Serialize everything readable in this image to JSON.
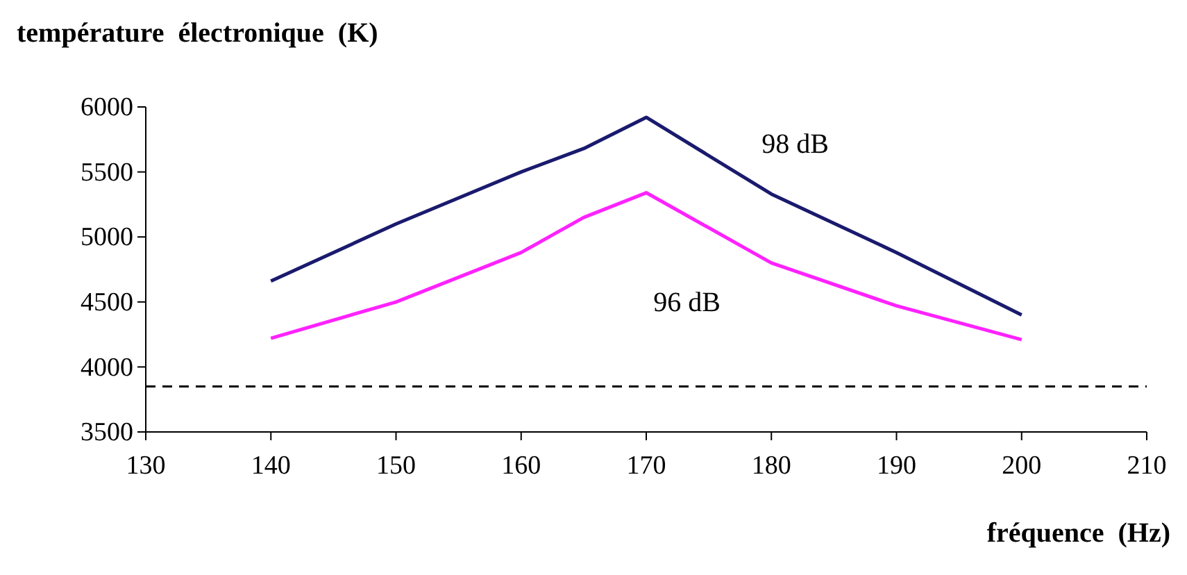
{
  "chart_data": {
    "type": "line",
    "xlabel": "fréquence  (Hz)",
    "ylabel": "température  électronique  (K)",
    "x": [
      140,
      150,
      160,
      165,
      170,
      180,
      190,
      200
    ],
    "series": [
      {
        "name": "98 dB",
        "color": "#1a1a6e",
        "values": [
          4660,
          5100,
          5500,
          5680,
          5920,
          5330,
          4880,
          4400
        ]
      },
      {
        "name": "96 dB",
        "color": "#ff22ff",
        "values": [
          4220,
          4500,
          4880,
          5150,
          5340,
          4800,
          4470,
          4210
        ]
      }
    ],
    "xlim": [
      130,
      210
    ],
    "xticks": [
      130,
      140,
      150,
      160,
      170,
      180,
      190,
      200,
      210
    ],
    "ylim": [
      3500,
      6000
    ],
    "yticks": [
      3500,
      4000,
      4500,
      5000,
      5500,
      6000
    ],
    "ref_lines": [
      {
        "axis": "y",
        "value": 3850,
        "color": "#000000",
        "line_style": "dashed"
      }
    ],
    "grid": false,
    "legend": false,
    "line_style": "solid",
    "marker": "none"
  }
}
